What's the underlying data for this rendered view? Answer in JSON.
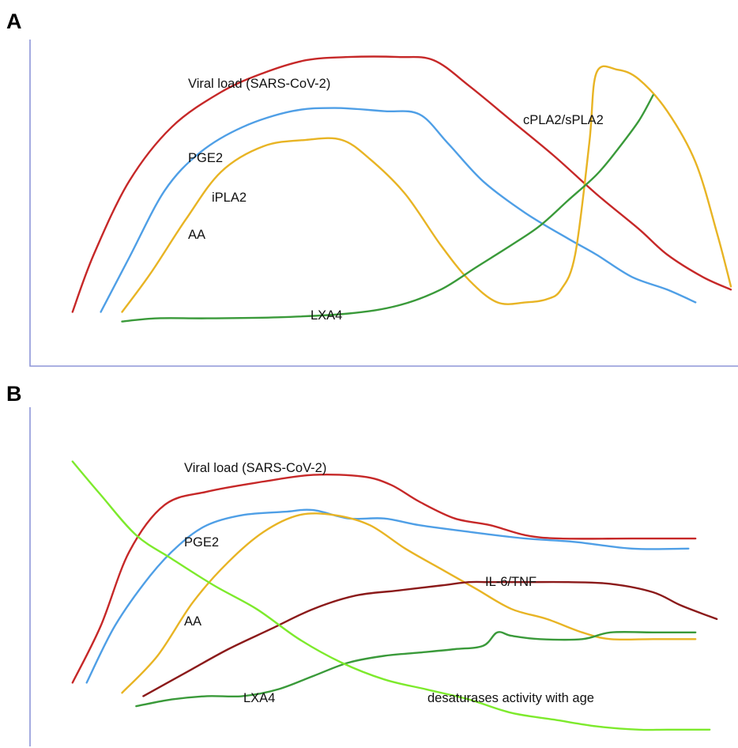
{
  "colors": {
    "viral_load": "#c62828",
    "pge2": "#4f9fe6",
    "aa": "#e8b424",
    "lxa4": "#3a9a3a",
    "cpla2": "#e8b424",
    "il6_tnf": "#8b1a1a",
    "desaturases": "#7dea2c",
    "axis": "#8e96d8"
  },
  "chart_data": [
    {
      "panel": "A",
      "type": "line",
      "title": "",
      "xlabel": "",
      "ylabel": "",
      "grid": false,
      "xlim": [
        0,
        100
      ],
      "ylim": [
        0,
        100
      ],
      "series": [
        {
          "name": "Viral load (SARS-CoV-2)",
          "key": "viral_load",
          "x": [
            6,
            9,
            14,
            20,
            27,
            33,
            39,
            45,
            52,
            57,
            62,
            68,
            74,
            80,
            86,
            90,
            95,
            99
          ],
          "y": [
            17,
            35,
            58,
            75,
            86,
            92,
            96,
            97,
            97,
            96,
            88,
            77,
            66,
            54,
            43,
            35,
            28,
            24
          ]
        },
        {
          "name": "PGE2",
          "key": "pge2",
          "x": [
            10,
            14,
            19,
            24,
            30,
            37,
            43,
            50,
            55,
            59,
            64,
            70,
            76,
            80,
            85,
            90,
            94
          ],
          "y": [
            17,
            34,
            55,
            67,
            75,
            80,
            81,
            80,
            79,
            70,
            58,
            48,
            40,
            35,
            28,
            24,
            20
          ]
        },
        {
          "name": "iPLA2",
          "key": "aa",
          "x": [
            13,
            17,
            22,
            27,
            33,
            39,
            44,
            48,
            53,
            58,
            62,
            66,
            70,
            73,
            75,
            77,
            79,
            80,
            83,
            86,
            90,
            94,
            97,
            99
          ],
          "y": [
            17,
            29,
            46,
            61,
            69,
            71,
            71,
            65,
            54,
            38,
            27,
            20,
            20,
            21,
            24,
            35,
            70,
            92,
            93,
            90,
            80,
            64,
            42,
            25
          ]
        },
        {
          "name": "LXA4",
          "key": "lxa4",
          "x": [
            13,
            18,
            25,
            35,
            45,
            52,
            58,
            63,
            68,
            72,
            76,
            80,
            83,
            86,
            88
          ],
          "y": [
            14,
            15,
            15,
            15.3,
            16.5,
            19,
            24,
            31,
            38,
            44,
            52,
            60,
            68,
            77,
            85
          ]
        }
      ],
      "annotations": [
        {
          "text": "Viral load (SARS-CoV-2)",
          "series": "viral_load"
        },
        {
          "text": "PGE2",
          "series": "pge2"
        },
        {
          "text": "iPLA2",
          "series": "aa"
        },
        {
          "text": "AA",
          "series": "aa"
        },
        {
          "text": "LXA4",
          "series": "lxa4"
        },
        {
          "text": "cPLA2/sPLA2",
          "series": "cpla2"
        }
      ]
    },
    {
      "panel": "B",
      "type": "line",
      "title": "",
      "xlabel": "",
      "ylabel": "",
      "grid": false,
      "xlim": [
        0,
        100
      ],
      "ylim": [
        0,
        100
      ],
      "series": [
        {
          "name": "Viral load (SARS-CoV-2)",
          "key": "viral_load",
          "x": [
            6,
            10,
            14,
            19,
            25,
            33,
            40,
            47,
            51,
            55,
            60,
            65,
            70,
            75,
            85,
            94
          ],
          "y": [
            19,
            36,
            58,
            72,
            76,
            79,
            81,
            80.5,
            78,
            73,
            68,
            66,
            63,
            62,
            62,
            62
          ]
        },
        {
          "name": "PGE2",
          "key": "pge2",
          "x": [
            8,
            12,
            17,
            21,
            25,
            30,
            36,
            40,
            45,
            50,
            55,
            62,
            70,
            77,
            85,
            93
          ],
          "y": [
            19,
            36,
            51,
            60,
            66,
            69,
            70,
            70.5,
            68,
            68,
            66,
            64,
            62,
            61,
            59,
            59
          ]
        },
        {
          "name": "AA",
          "key": "aa",
          "x": [
            13,
            18,
            23,
            28,
            33,
            38,
            43,
            48,
            53,
            58,
            63,
            68,
            73,
            78,
            82,
            88,
            94
          ],
          "y": [
            16,
            27,
            43,
            55,
            64,
            69,
            69,
            66,
            59,
            53,
            47,
            41,
            38,
            34,
            32,
            32,
            32
          ]
        },
        {
          "name": "IL-6/TNF",
          "key": "il6_tnf",
          "x": [
            16,
            22,
            28,
            34,
            40,
            46,
            52,
            58,
            62,
            65,
            70,
            76,
            82,
            88,
            92,
            97
          ],
          "y": [
            15,
            22,
            29,
            35,
            41,
            45,
            46.5,
            48,
            49,
            49,
            49,
            49,
            48.5,
            46,
            42,
            38
          ]
        },
        {
          "name": "LXA4",
          "key": "lxa4",
          "x": [
            15,
            20,
            25,
            30,
            35,
            40,
            45,
            50,
            55,
            60,
            64,
            66,
            68,
            72,
            78,
            82,
            88,
            94
          ],
          "y": [
            12,
            14,
            15,
            15,
            17,
            21,
            25,
            27,
            28,
            29,
            30,
            34,
            33,
            32,
            32,
            34,
            34,
            34
          ]
        },
        {
          "name": "desaturases activity with age",
          "key": "desaturases",
          "x": [
            6,
            10,
            15,
            20,
            26,
            32,
            38,
            44,
            50,
            56,
            62,
            68,
            74,
            80,
            86,
            90,
            96
          ],
          "y": [
            85,
            75,
            63,
            56,
            48,
            41,
            32,
            25,
            20,
            17,
            14,
            10,
            8,
            6,
            5,
            5,
            5
          ]
        }
      ],
      "annotations": [
        {
          "text": "Viral load (SARS-CoV-2)",
          "series": "viral_load"
        },
        {
          "text": "PGE2",
          "series": "pge2"
        },
        {
          "text": "AA",
          "series": "aa"
        },
        {
          "text": "IL-6/TNF",
          "series": "il6_tnf"
        },
        {
          "text": "LXA4",
          "series": "lxa4"
        },
        {
          "text": "desaturases activity with age",
          "series": "desaturases"
        }
      ]
    }
  ]
}
